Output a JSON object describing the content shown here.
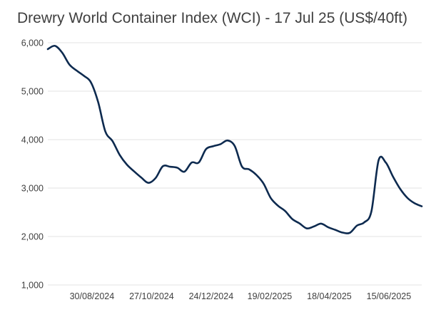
{
  "chart_data": {
    "type": "line",
    "title": "Drewry World Container Index (WCI) - 17 Jul 25 (US$/40ft)",
    "xlabel": "",
    "ylabel": "",
    "ylim": [
      1000,
      6000
    ],
    "yticks": [
      1000,
      2000,
      3000,
      4000,
      5000,
      6000
    ],
    "ytick_labels": [
      "1,000",
      "2,000",
      "3,000",
      "4,000",
      "5,000",
      "6,000"
    ],
    "xlim": [
      "2024-07-18",
      "2025-07-17"
    ],
    "xticks": [
      "2024-08-30",
      "2024-10-27",
      "2024-12-24",
      "2025-02-19",
      "2025-04-18",
      "2025-06-15"
    ],
    "xtick_labels": [
      "30/08/2024",
      "27/10/2024",
      "24/12/2024",
      "19/02/2025",
      "18/04/2025",
      "15/06/2025"
    ],
    "grid": "horizontal",
    "line_color": "#0d2a4f",
    "series": [
      {
        "x": [
          "2024-07-18",
          "2024-07-25",
          "2024-08-01",
          "2024-08-08",
          "2024-08-15",
          "2024-08-22",
          "2024-08-29",
          "2024-09-05",
          "2024-09-12",
          "2024-09-19",
          "2024-09-26",
          "2024-10-03",
          "2024-10-10",
          "2024-10-17",
          "2024-10-24",
          "2024-10-31",
          "2024-11-07",
          "2024-11-14",
          "2024-11-21",
          "2024-11-28",
          "2024-12-05",
          "2024-12-12",
          "2024-12-19",
          "2024-12-26",
          "2025-01-02",
          "2025-01-09",
          "2025-01-16",
          "2025-01-23",
          "2025-01-30",
          "2025-02-06",
          "2025-02-13",
          "2025-02-20",
          "2025-02-27",
          "2025-03-06",
          "2025-03-13",
          "2025-03-20",
          "2025-03-27",
          "2025-04-03",
          "2025-04-10",
          "2025-04-17",
          "2025-04-24",
          "2025-05-01",
          "2025-05-08",
          "2025-05-15",
          "2025-05-22",
          "2025-05-29",
          "2025-06-05",
          "2025-06-12",
          "2025-06-19",
          "2025-06-26",
          "2025-07-03",
          "2025-07-10",
          "2025-07-17"
        ],
        "values": [
          5868,
          5936,
          5795,
          5551,
          5426,
          5319,
          5181,
          4775,
          4168,
          3970,
          3683,
          3483,
          3345,
          3217,
          3108,
          3209,
          3451,
          3440,
          3420,
          3338,
          3526,
          3528,
          3803,
          3864,
          3905,
          3982,
          3866,
          3444,
          3386,
          3272,
          3093,
          2795,
          2637,
          2526,
          2360,
          2271,
          2168,
          2207,
          2266,
          2190,
          2136,
          2081,
          2076,
          2226,
          2291,
          2517,
          3573,
          3527,
          3237,
          2983,
          2798,
          2687,
          2624
        ]
      }
    ]
  }
}
